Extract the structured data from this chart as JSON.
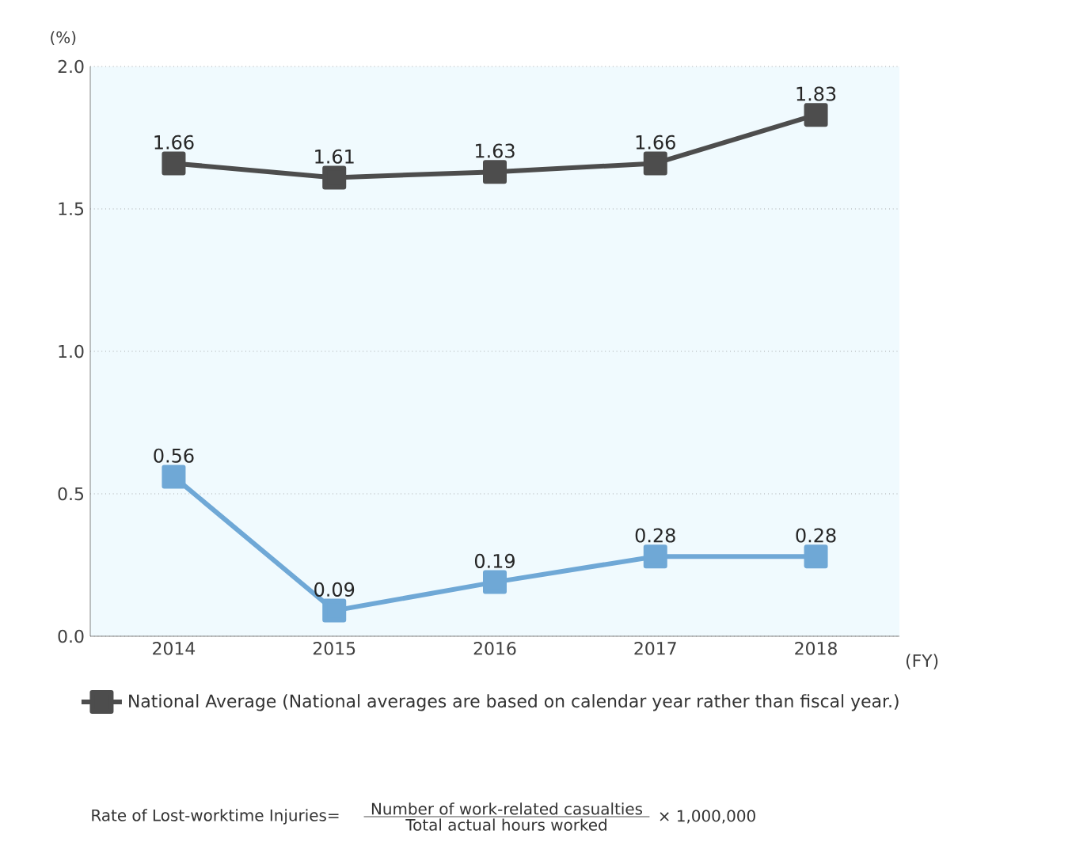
{
  "chart_data": {
    "type": "line",
    "categories": [
      "2014",
      "2015",
      "2016",
      "2017",
      "2018"
    ],
    "series": [
      {
        "color": "#6fa8d6",
        "values": [
          0.56,
          0.09,
          0.19,
          0.28,
          0.28
        ]
      },
      {
        "name": "National Average (National averages are based on calendar year rather than fiscal year.)",
        "color": "#4d4d4d",
        "values": [
          1.66,
          1.61,
          1.63,
          1.66,
          1.83
        ]
      }
    ],
    "ylim": [
      0,
      2
    ],
    "yticks": [
      {
        "value": 0,
        "label": "0.0"
      },
      {
        "value": 0.5,
        "label": "0.5"
      },
      {
        "value": 1,
        "label": "1.0"
      },
      {
        "value": 1.5,
        "label": "1.5"
      },
      {
        "value": 2,
        "label": "2.0"
      }
    ],
    "ylabel": "(%)",
    "xlabel": "(FY)",
    "grid": "y",
    "legend": "bottom",
    "marker": "square",
    "line_style": "solid",
    "data_labels": true,
    "annotations": [
      "Rate of Lost-worktime Injuries=",
      "Number of work-related casualties",
      "Total actual hours worked",
      "× 1,000,000"
    ]
  }
}
